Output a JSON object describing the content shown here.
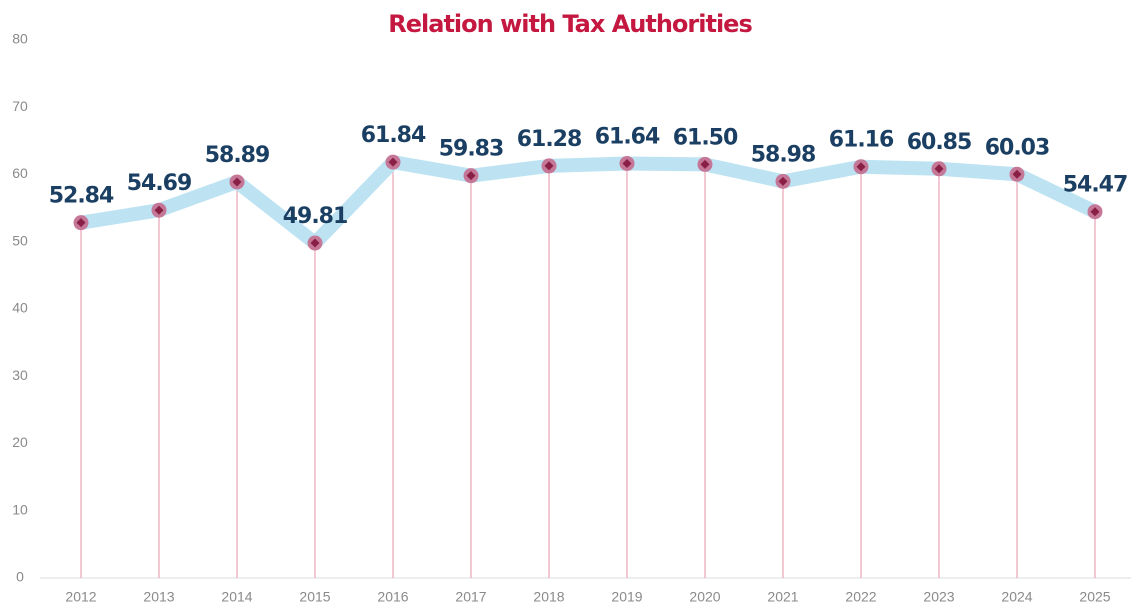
{
  "chart_data": {
    "type": "line",
    "title": "Relation with Tax Authorities",
    "categories": [
      "2012",
      "2013",
      "2014",
      "2015",
      "2016",
      "2017",
      "2018",
      "2019",
      "2020",
      "2021",
      "2022",
      "2023",
      "2024",
      "2025"
    ],
    "values": [
      52.84,
      54.69,
      58.89,
      49.81,
      61.84,
      59.83,
      61.28,
      61.64,
      61.5,
      58.98,
      61.16,
      60.85,
      60.03,
      54.47
    ],
    "value_labels": [
      "52.84",
      "54.69",
      "58.89",
      "49.81",
      "61.84",
      "59.83",
      "61.28",
      "61.64",
      "61.50",
      "58.98",
      "61.16",
      "60.85",
      "60.03",
      "54.47"
    ],
    "color": "#bde3f3",
    "marker_color": "#c46a8c",
    "dropline_color": "#e8a3b5",
    "ylim": [
      0,
      80
    ],
    "yticks": [
      0,
      10,
      20,
      30,
      40,
      50,
      60,
      70,
      80
    ],
    "grid": false
  }
}
